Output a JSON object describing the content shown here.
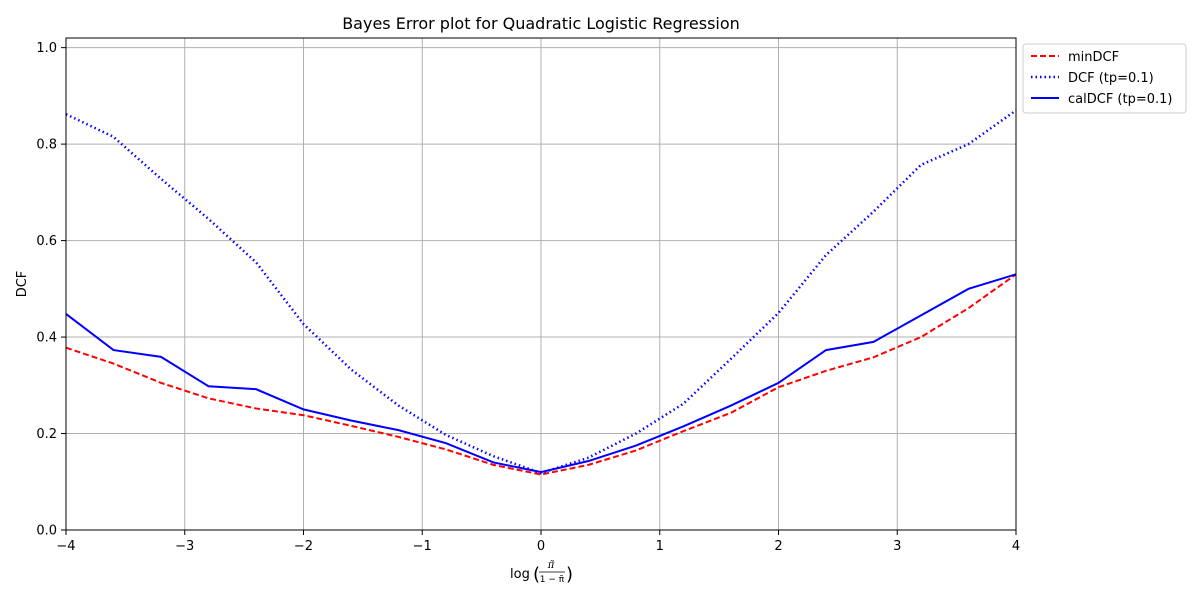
{
  "chart_data": {
    "type": "line",
    "title": "Bayes Error plot for Quadratic Logistic Regression",
    "xlabel_prefix": "log",
    "xlabel_numerator": "π̃",
    "xlabel_denominator": "1 − π̃",
    "ylabel": "DCF",
    "xlim": [
      -4,
      4
    ],
    "ylim": [
      0,
      1.02
    ],
    "xticks": [
      -4,
      -3,
      -2,
      -1,
      0,
      1,
      2,
      3,
      4
    ],
    "xtick_labels": [
      "−4",
      "−3",
      "−2",
      "−1",
      "0",
      "1",
      "2",
      "3",
      "4"
    ],
    "yticks": [
      0,
      0.2,
      0.4,
      0.6,
      0.8,
      1.0
    ],
    "ytick_labels": [
      "0.0",
      "0.2",
      "0.4",
      "0.6",
      "0.8",
      "1.0"
    ],
    "grid": true,
    "legend_position": "outside-top-right",
    "x": [
      -4.0,
      -3.6,
      -3.2,
      -2.8,
      -2.4,
      -2.0,
      -1.6,
      -1.2,
      -0.8,
      -0.4,
      0.0,
      0.4,
      0.8,
      1.2,
      1.6,
      2.0,
      2.4,
      2.8,
      3.2,
      3.6,
      4.0
    ],
    "series": [
      {
        "name": "minDCF",
        "color": "#ff0000",
        "style": "dashed",
        "values": [
          0.378,
          0.345,
          0.305,
          0.273,
          0.252,
          0.238,
          0.216,
          0.193,
          0.167,
          0.135,
          0.115,
          0.135,
          0.165,
          0.205,
          0.243,
          0.296,
          0.33,
          0.358,
          0.4,
          0.46,
          0.53
        ]
      },
      {
        "name": "DCF (tp=0.1)",
        "color": "#0000ff",
        "style": "dotted",
        "values": [
          0.862,
          0.815,
          0.728,
          0.645,
          0.555,
          0.427,
          0.333,
          0.258,
          0.197,
          0.153,
          0.118,
          0.15,
          0.2,
          0.262,
          0.355,
          0.45,
          0.57,
          0.66,
          0.757,
          0.8,
          0.87
        ]
      },
      {
        "name": "calDCF (tp=0.1)",
        "color": "#0000ff",
        "style": "solid",
        "values": [
          0.448,
          0.373,
          0.359,
          0.298,
          0.292,
          0.25,
          0.227,
          0.207,
          0.18,
          0.14,
          0.12,
          0.143,
          0.175,
          0.215,
          0.258,
          0.305,
          0.373,
          0.39,
          0.445,
          0.5,
          0.53
        ]
      }
    ]
  }
}
